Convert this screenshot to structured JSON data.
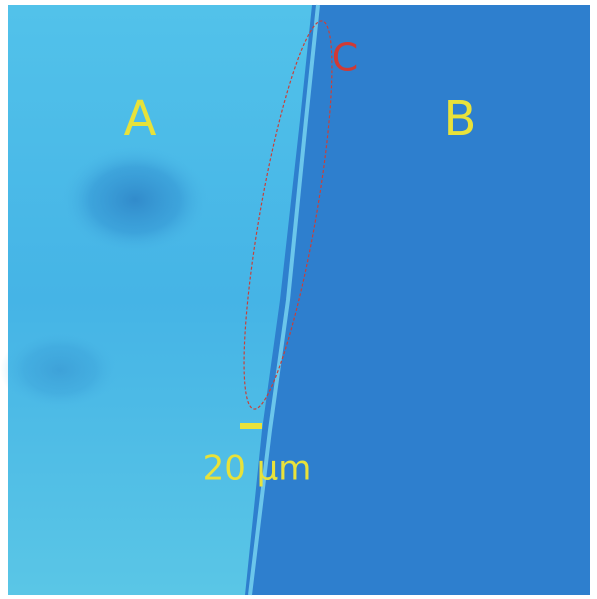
{
  "labels": {
    "a": "A",
    "b": "B",
    "c": "C"
  },
  "scale_bar": {
    "label": "20 µm"
  }
}
